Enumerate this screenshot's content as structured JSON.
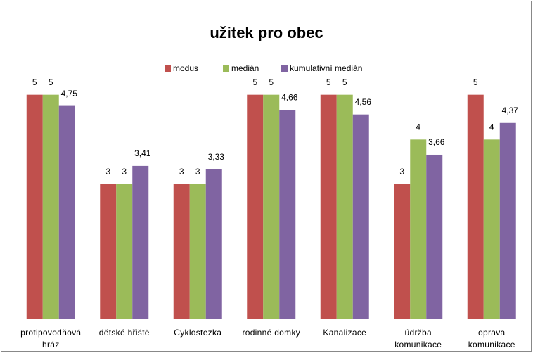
{
  "chart_data": {
    "type": "bar",
    "title": "užitek pro obec",
    "categories": [
      "protipovodňová hráz",
      "dětské hřiště",
      "Cyklostezka",
      "rodinné domky",
      "Kanalizace",
      "údržba komunikace",
      "oprava komunikace"
    ],
    "series": [
      {
        "name": "modus",
        "color": "#c0504d",
        "values": [
          5,
          3,
          3,
          5,
          5,
          3,
          5
        ]
      },
      {
        "name": "medián",
        "color": "#9bbb59",
        "values": [
          5,
          3,
          3,
          5,
          5,
          4,
          4
        ]
      },
      {
        "name": "kumulativní medián",
        "color": "#8064a2",
        "values": [
          4.75,
          3.41,
          3.33,
          4.66,
          4.56,
          3.66,
          4.37
        ],
        "value_labels": [
          "4,75",
          "3,41",
          "3,33",
          "4,66",
          "4,56",
          "3,66",
          "4,37"
        ]
      }
    ],
    "ylim": [
      0,
      6
    ],
    "legend": "top"
  }
}
